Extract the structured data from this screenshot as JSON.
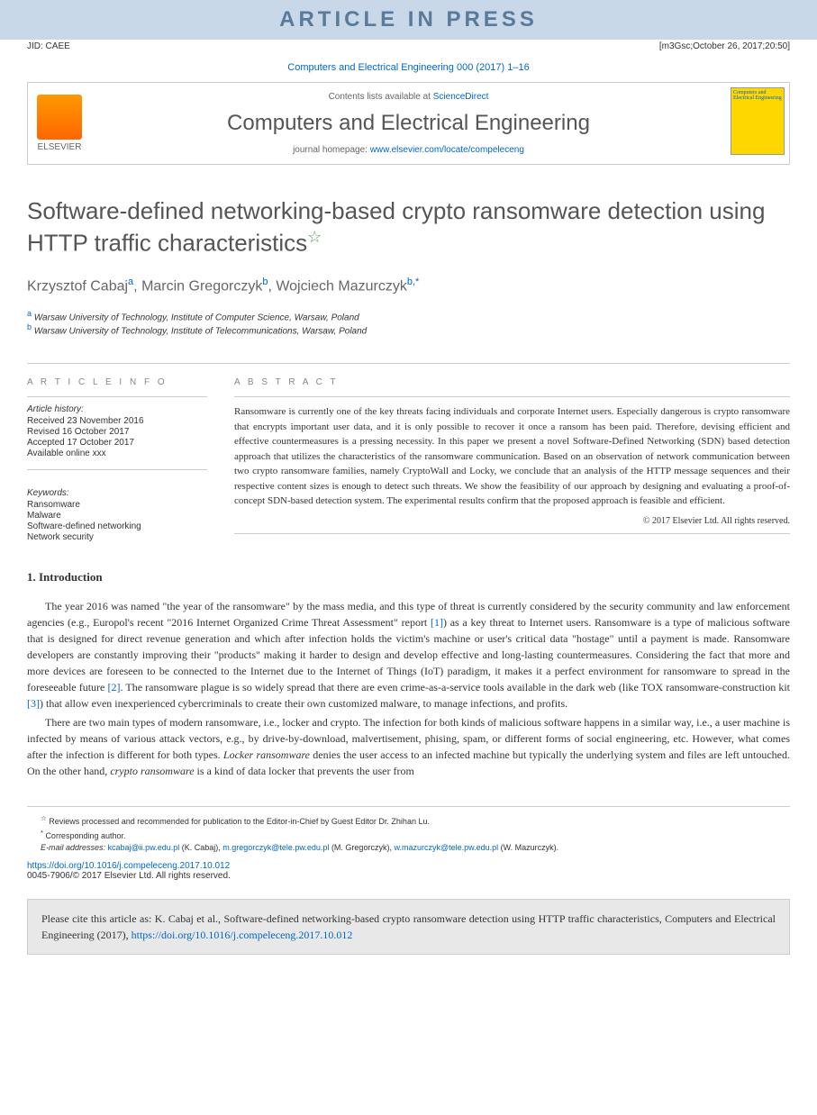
{
  "banner": "ARTICLE IN PRESS",
  "jid": {
    "left": "JID: CAEE",
    "right": "[m3Gsc;October 26, 2017;20:50]"
  },
  "journalRef": "Computers and Electrical Engineering 000 (2017) 1–16",
  "header": {
    "contentsPrefix": "Contents lists available at ",
    "contentsLink": "ScienceDirect",
    "journalTitle": "Computers and Electrical Engineering",
    "homepagePrefix": "journal homepage: ",
    "homepageLink": "www.elsevier.com/locate/compeleceng",
    "elsevier": "ELSEVIER",
    "coverText": "Computers and Electrical Engineering"
  },
  "title": "Software-defined networking-based crypto ransomware detection using HTTP traffic characteristics",
  "starNote": "☆",
  "authors": {
    "a1": "Krzysztof Cabaj",
    "a1sup": "a",
    "a2": "Marcin Gregorczyk",
    "a2sup": "b",
    "a3": "Wojciech Mazurczyk",
    "a3sup": "b,",
    "corr": "*"
  },
  "affiliations": {
    "a": "Warsaw University of Technology, Institute of Computer Science, Warsaw, Poland",
    "b": "Warsaw University of Technology, Institute of Telecommunications, Warsaw, Poland"
  },
  "articleInfo": {
    "heading": "A R T I C L E   I N F O",
    "historyLabel": "Article history:",
    "received": "Received 23 November 2016",
    "revised": "Revised 16 October 2017",
    "accepted": "Accepted 17 October 2017",
    "available": "Available online xxx",
    "keywordsLabel": "Keywords:",
    "kw1": "Ransomware",
    "kw2": "Malware",
    "kw3": "Software-defined networking",
    "kw4": "Network security"
  },
  "abstract": {
    "heading": "A B S T R A C T",
    "text": "Ransomware is currently one of the key threats facing individuals and corporate Internet users. Especially dangerous is crypto ransomware that encrypts important user data, and it is only possible to recover it once a ransom has been paid. Therefore, devising efficient and effective countermeasures is a pressing necessity. In this paper we present a novel Software-Defined Networking (SDN) based detection approach that utilizes the characteristics of the ransomware communication. Based on an observation of network communication between two crypto ransomware families, namely CryptoWall and Locky, we conclude that an analysis of the HTTP message sequences and their respective content sizes is enough to detect such threats. We show the feasibility of our approach by designing and evaluating a proof-of-concept SDN-based detection system. The experimental results confirm that the proposed approach is feasible and efficient.",
    "copyright": "© 2017 Elsevier Ltd. All rights reserved."
  },
  "intro": {
    "heading": "1. Introduction",
    "p1a": "The year 2016 was named \"the year of the ransomware\" by the mass media, and this type of threat is currently considered by the security community and law enforcement agencies (e.g., Europol's recent \"2016 Internet Organized Crime Threat Assessment\" report ",
    "ref1": "[1]",
    "p1b": ") as a key threat to Internet users. Ransomware is a type of malicious software that is designed for direct revenue generation and which after infection holds the victim's machine or user's critical data \"hostage\" until a payment is made. Ransomware developers are constantly improving their \"products\" making it harder to design and develop effective and long-lasting countermeasures. Considering the fact that more and more devices are foreseen to be connected to the Internet due to the Internet of Things (IoT) paradigm, it makes it a perfect environment for ransomware to spread in the foreseeable future ",
    "ref2": "[2]",
    "p1c": ". The ransomware plague is so widely spread that there are even crime-as-a-service tools available in the dark web (like TOX ransomware-construction kit ",
    "ref3": "[3]",
    "p1d": ") that allow even inexperienced cybercriminals to create their own customized malware, to manage infections, and profits.",
    "p2a": "There are two main types of modern ransomware, i.e., locker and crypto. The infection for both kinds of malicious software happens in a similar way, i.e., a user machine is infected by means of various attack vectors, e.g., by drive-by-download, malvertisement, phising, spam, or different forms of social engineering, etc. However, what comes after the infection is different for both types. ",
    "p2b": "Locker ransomware",
    "p2c": " denies the user access to an infected machine but typically the underlying system and files are left untouched. On the other hand, ",
    "p2d": "crypto ransomware",
    "p2e": " is a kind of data locker that prevents the user from"
  },
  "footnotes": {
    "review": "Reviews processed and recommended for publication to the Editor-in-Chief by Guest Editor Dr. Zhihan Lu.",
    "corresp": "Corresponding author.",
    "emailLabel": "E-mail addresses: ",
    "e1": "kcabaj@ii.pw.edu.pl",
    "e1name": " (K. Cabaj), ",
    "e2": "m.gregorczyk@tele.pw.edu.pl",
    "e2name": " (M. Gregorczyk), ",
    "e3": "w.mazurczyk@tele.pw.edu.pl",
    "e3name": " (W. Mazurczyk)."
  },
  "doi": {
    "link": "https://doi.org/10.1016/j.compeleceng.2017.10.012",
    "issn": "0045-7906/© 2017 Elsevier Ltd. All rights reserved."
  },
  "citeBox": {
    "prefix": "Please cite this article as: K. Cabaj et al., Software-defined networking-based crypto ransomware detection using HTTP traffic characteristics, Computers and Electrical Engineering (2017), ",
    "link": "https://doi.org/10.1016/j.compeleceng.2017.10.012"
  }
}
